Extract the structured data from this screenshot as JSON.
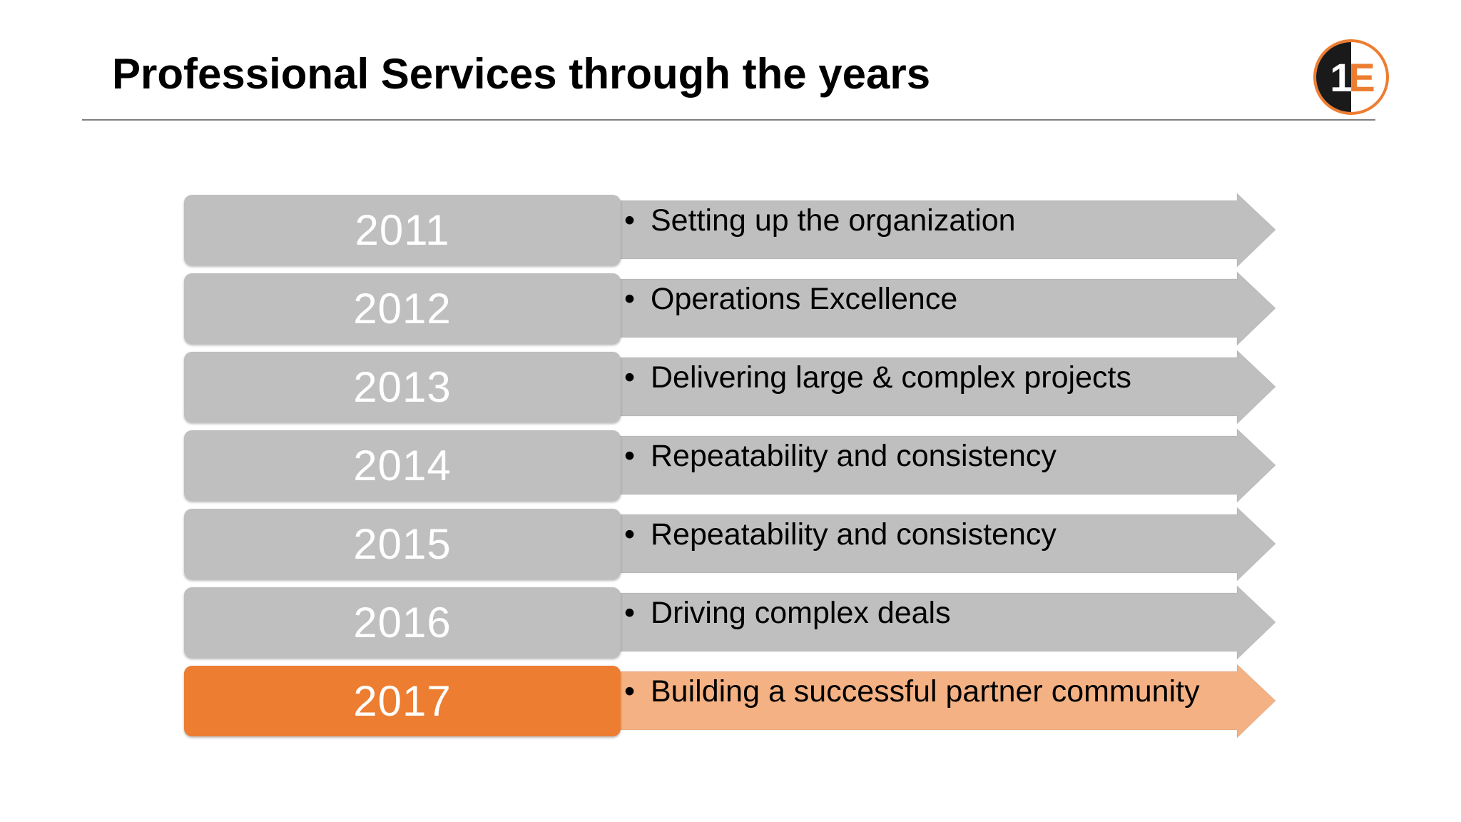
{
  "title": "Professional Services through the years",
  "logo": {
    "text": "1E",
    "icon": "1e-logo-icon",
    "colors": {
      "dark": "#1a1a1a",
      "accent": "#ed7d31"
    }
  },
  "bullet_glyph": "•",
  "colors": {
    "year_box_default": "#bfbfbf",
    "year_box_highlight": "#ed7d31",
    "arrow_default": "#bfbfbf",
    "arrow_highlight": "#f4b183"
  },
  "timeline": [
    {
      "year": "2011",
      "text": "Setting up the organization",
      "highlight": false
    },
    {
      "year": "2012",
      "text": "Operations Excellence",
      "highlight": false
    },
    {
      "year": "2013",
      "text": "Delivering large & complex projects",
      "highlight": false
    },
    {
      "year": "2014",
      "text": "Repeatability and consistency",
      "highlight": false
    },
    {
      "year": "2015",
      "text": "Repeatability and consistency",
      "highlight": false
    },
    {
      "year": "2016",
      "text": "Driving complex deals",
      "highlight": false
    },
    {
      "year": "2017",
      "text": "Building a successful partner community",
      "highlight": true
    }
  ]
}
